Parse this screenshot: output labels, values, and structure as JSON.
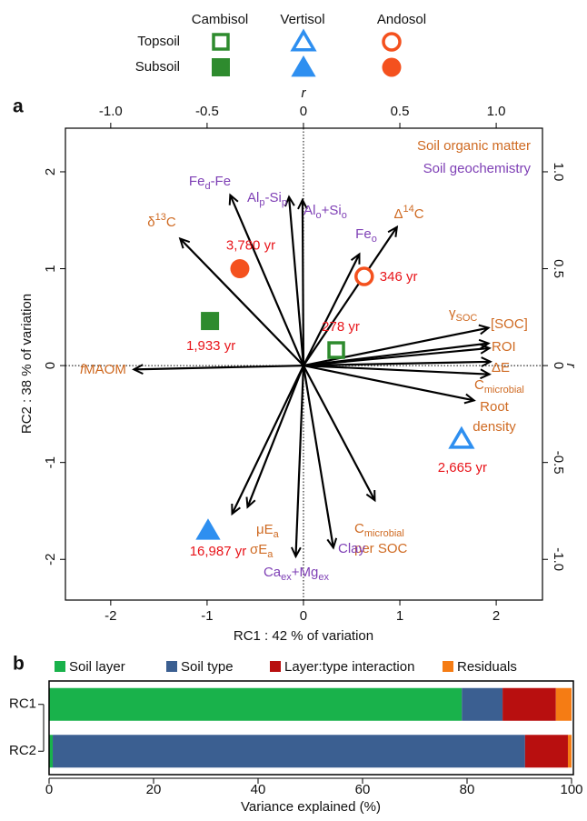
{
  "chart_data": [
    {
      "type": "biplot",
      "panel": "a",
      "xlabel": "RC1 : 42 % of variation",
      "ylabel": "RC2 : 38 % of variation",
      "x2label": "r",
      "y2label": "r",
      "xlim": [
        -2.47,
        2.48
      ],
      "ylim": [
        -2.42,
        2.45
      ],
      "xticks": [
        -2,
        -1,
        0,
        1,
        2
      ],
      "yticks": [
        -2,
        -1,
        0,
        1,
        2
      ],
      "x2lim": [
        -1.235,
        1.24
      ],
      "y2lim": [
        -1.21,
        1.225
      ],
      "x2ticks": [
        {
          "value": -1,
          "label": "-1.0"
        },
        -0.5,
        0,
        0.5,
        {
          "value": 1,
          "label": "1.0"
        }
      ],
      "y2ticks": [
        {
          "value": -1,
          "label": "-1.0"
        },
        -0.5,
        0,
        0.5,
        {
          "value": 1,
          "label": "1.0"
        }
      ],
      "zero_lines": true,
      "label_color": "#e8141a",
      "layers": [
        {
          "name": "Topsoil",
          "filled": false
        },
        {
          "name": "Subsoil",
          "filled": true
        }
      ],
      "series": [
        {
          "name": "Cambisol",
          "color": "#2e8b2e",
          "marker": "square",
          "x": [
            0.34,
            -0.97
          ],
          "y": [
            0.16,
            0.46
          ],
          "labels": [
            "278 yr",
            "1,933 yr"
          ]
        },
        {
          "name": "Vertisol",
          "color": "#2e8ff0",
          "marker": "triangle",
          "x": [
            1.64,
            -0.99
          ],
          "y": [
            -0.76,
            -1.7
          ],
          "labels": [
            "2,665 yr",
            "16,987 yr"
          ]
        },
        {
          "name": "Andosol",
          "color": "#f4511e",
          "marker": "circle",
          "x": [
            0.63,
            -0.66
          ],
          "y": [
            0.92,
            1.0
          ],
          "labels": [
            "346 yr",
            "3,780 yr"
          ]
        }
      ],
      "arrow_groups": [
        {
          "name": "Soil organic matter",
          "color": "#cf6a22",
          "arrows": [
            {
              "label": [
                [
                  "δ",
                  {
                    "sup": "13"
                  },
                  "C"
                ]
              ],
              "x": -1.28,
              "y": 1.31
            },
            {
              "label": [
                [
                  "Δ",
                  {
                    "sup": "14"
                  },
                  "C"
                ]
              ],
              "x": 0.97,
              "y": 1.43
            },
            {
              "label": [
                [
                  "γ",
                  {
                    "sub": "SOC"
                  }
                ]
              ],
              "x": 1.92,
              "y": 0.39
            },
            {
              "label": [
                [
                  "[SOC]"
                ]
              ],
              "x": 1.92,
              "y": 0.23
            },
            {
              "label": [
                [
                  "ROI"
                ]
              ],
              "x": 1.93,
              "y": 0.18
            },
            {
              "label": [
                [
                  "ΔE"
                ]
              ],
              "x": 1.94,
              "y": 0.04
            },
            {
              "label": [
                [
                  "C",
                  {
                    "sub": "microbial"
                  }
                ]
              ],
              "x": 1.93,
              "y": -0.09
            },
            {
              "label": [
                [
                  "Root"
                ],
                [
                  "density"
                ]
              ],
              "x": 1.77,
              "y": -0.36
            },
            {
              "label": [
                [
                  "C",
                  {
                    "sub": "microbial"
                  }
                ],
                [
                  "per SOC"
                ]
              ],
              "x": 0.74,
              "y": -1.39
            },
            {
              "label": [
                [
                  "μE",
                  {
                    "sub": "a"
                  }
                ]
              ],
              "x": -0.58,
              "y": -1.46
            },
            {
              "label": [
                [
                  "σE",
                  {
                    "sub": "a"
                  }
                ]
              ],
              "x": -0.74,
              "y": -1.53
            },
            {
              "label": [
                [
                  {
                    "it": "f"
                  },
                  "MAOM"
                ]
              ],
              "x": -1.76,
              "y": -0.04
            }
          ]
        },
        {
          "name": "Soil geochemistry",
          "color": "#7e3fb5",
          "arrows": [
            {
              "label": [
                [
                  "Fe",
                  {
                    "sub": "d"
                  },
                  "-Fe"
                ]
              ],
              "x": -0.76,
              "y": 1.76
            },
            {
              "label": [
                [
                  "Al",
                  {
                    "sub": "p"
                  },
                  "-Si",
                  {
                    "sub": "p"
                  }
                ]
              ],
              "x": -0.15,
              "y": 1.74
            },
            {
              "label": [
                [
                  "Al",
                  {
                    "sub": "o"
                  },
                  "+Si",
                  {
                    "sub": "o"
                  }
                ]
              ],
              "x": -0.01,
              "y": 1.71
            },
            {
              "label": [
                [
                  "Fe",
                  {
                    "sub": "o"
                  }
                ]
              ],
              "x": 0.58,
              "y": 1.15
            },
            {
              "label": [
                [
                  "Clay"
                ]
              ],
              "x": 0.31,
              "y": -1.88
            },
            {
              "label": [
                [
                  "Ca",
                  {
                    "sub": "ex"
                  },
                  "+Mg",
                  {
                    "sub": "ex"
                  }
                ]
              ],
              "x": -0.08,
              "y": -1.97
            }
          ]
        }
      ]
    },
    {
      "type": "stacked_barh",
      "panel": "b",
      "xlabel": "Variance explained (%)",
      "categories": [
        "RC1",
        "RC2"
      ],
      "series": [
        {
          "name": "Soil layer",
          "color": "#19b24b",
          "values": [
            79,
            0.7
          ]
        },
        {
          "name": "Soil type",
          "color": "#3b5f91",
          "values": [
            7.8,
            90.4
          ]
        },
        {
          "name": "Layer:type interaction",
          "color": "#b80f0f",
          "values": [
            10.2,
            8.2
          ]
        },
        {
          "name": "Residuals",
          "color": "#f57c14",
          "values": [
            3,
            0.7
          ]
        }
      ],
      "xlim": [
        0,
        100
      ],
      "xticks": [
        0,
        20,
        40,
        60,
        80,
        100
      ]
    }
  ]
}
